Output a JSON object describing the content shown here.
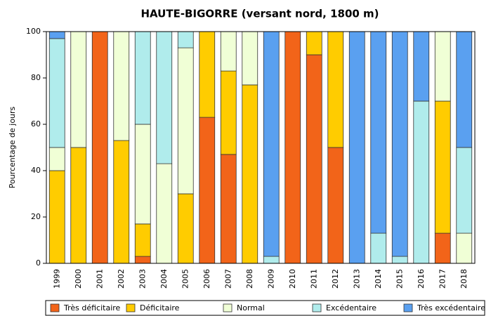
{
  "chart_data": {
    "type": "stacked_bar",
    "title": "HAUTE-BIGORRE  (versant nord, 1800 m)",
    "y_label": "Pourcentage de jours",
    "categories": [
      "1999",
      "2000",
      "2001",
      "2002",
      "2003",
      "2004",
      "2005",
      "2006",
      "2007",
      "2008",
      "2009",
      "2010",
      "2011",
      "2012",
      "2013",
      "2014",
      "2015",
      "2016",
      "2017",
      "2018"
    ],
    "series": [
      {
        "name": "Très déficitaire",
        "color": "#f26419",
        "values": [
          0,
          0,
          100,
          0,
          3,
          0,
          0,
          63,
          47,
          0,
          0,
          100,
          90,
          50,
          0,
          0,
          0,
          0,
          13,
          0
        ]
      },
      {
        "name": "Déficitaire",
        "color": "#ffcc00",
        "values": [
          40,
          50,
          0,
          53,
          14,
          0,
          30,
          37,
          36,
          77,
          0,
          0,
          10,
          50,
          0,
          0,
          0,
          0,
          57,
          0
        ]
      },
      {
        "name": "Normal",
        "color": "#f0ffd6",
        "values": [
          10,
          50,
          0,
          47,
          43,
          43,
          63,
          0,
          17,
          23,
          0,
          0,
          0,
          0,
          0,
          0,
          0,
          0,
          30,
          13
        ]
      },
      {
        "name": "Excédentaire",
        "color": "#b0ecec",
        "values": [
          47,
          0,
          0,
          0,
          40,
          57,
          7,
          0,
          0,
          0,
          3,
          0,
          0,
          0,
          0,
          13,
          3,
          70,
          0,
          37
        ]
      },
      {
        "name": "Très excédentaire",
        "color": "#5aa0f0",
        "values": [
          3,
          0,
          0,
          0,
          0,
          0,
          0,
          0,
          0,
          0,
          97,
          0,
          0,
          0,
          100,
          87,
          97,
          30,
          0,
          50
        ]
      }
    ],
    "ylim": [
      0,
      100
    ],
    "yticks": [
      0,
      20,
      40,
      60,
      80,
      100
    ],
    "grid": false,
    "legend": "bottom"
  }
}
